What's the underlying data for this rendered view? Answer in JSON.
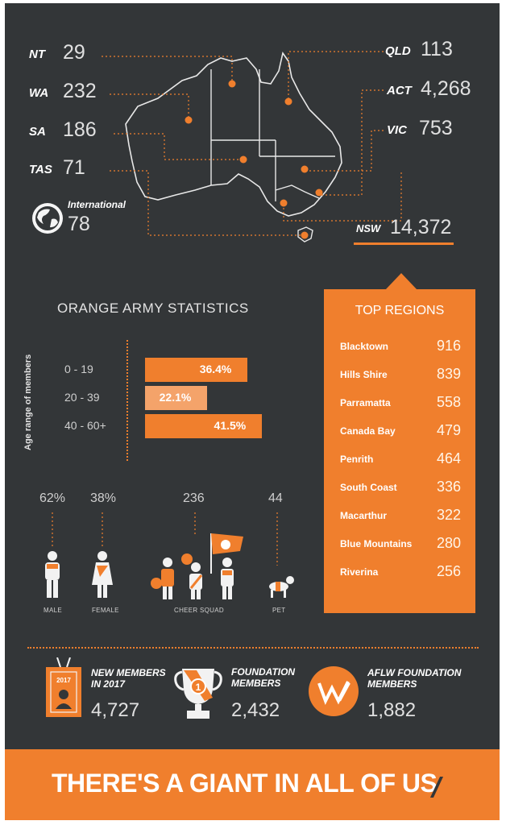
{
  "states": {
    "nt": {
      "label": "NT",
      "value": "29"
    },
    "wa": {
      "label": "WA",
      "value": "232"
    },
    "sa": {
      "label": "SA",
      "value": "186"
    },
    "tas": {
      "label": "TAS",
      "value": "71"
    },
    "qld": {
      "label": "QLD",
      "value": "113"
    },
    "act": {
      "label": "ACT",
      "value": "4,268"
    },
    "vic": {
      "label": "VIC",
      "value": "753"
    },
    "nsw": {
      "label": "NSW",
      "value": "14,372"
    }
  },
  "international": {
    "label": "International",
    "value": "78"
  },
  "stats_title": "ORANGE ARMY STATISTICS",
  "chart_data": {
    "type": "bar",
    "ylabel": "Age range of members",
    "categories": [
      "0 - 19",
      "20 - 39",
      "40 - 60+"
    ],
    "values": [
      36.4,
      22.1,
      41.5
    ],
    "value_labels": [
      "36.4%",
      "22.1%",
      "41.5%"
    ]
  },
  "demographics": [
    {
      "value": "62%",
      "caption": "MALE"
    },
    {
      "value": "38%",
      "caption": "FEMALE"
    },
    {
      "value": "236",
      "caption": "CHEER SQUAD"
    },
    {
      "value": "44",
      "caption": "PET"
    }
  ],
  "top_regions": {
    "title": "TOP REGIONS",
    "items": [
      {
        "name": "Blacktown",
        "value": "916"
      },
      {
        "name": "Hills Shire",
        "value": "839"
      },
      {
        "name": "Parramatta",
        "value": "558"
      },
      {
        "name": "Canada Bay",
        "value": "479"
      },
      {
        "name": "Penrith",
        "value": "464"
      },
      {
        "name": "South Coast",
        "value": "336"
      },
      {
        "name": "Macarthur",
        "value": "322"
      },
      {
        "name": "Blue Mountains",
        "value": "280"
      },
      {
        "name": "Riverina",
        "value": "256"
      }
    ]
  },
  "bottom": {
    "new_members": {
      "line1": "NEW MEMBERS",
      "line2": "IN 2017",
      "value": "4,727",
      "badge_year": "2017"
    },
    "foundation": {
      "line1": "FOUNDATION",
      "line2": "MEMBERS",
      "value": "2,432",
      "trophy_digit": "1"
    },
    "aflw": {
      "line1": "AFLW FOUNDATION",
      "line2": "MEMBERS",
      "value": "1,882"
    }
  },
  "footer_text": "THERE'S A GIANT IN ALL OF US",
  "colors": {
    "background": "#333638",
    "accent": "#f07f2d"
  }
}
